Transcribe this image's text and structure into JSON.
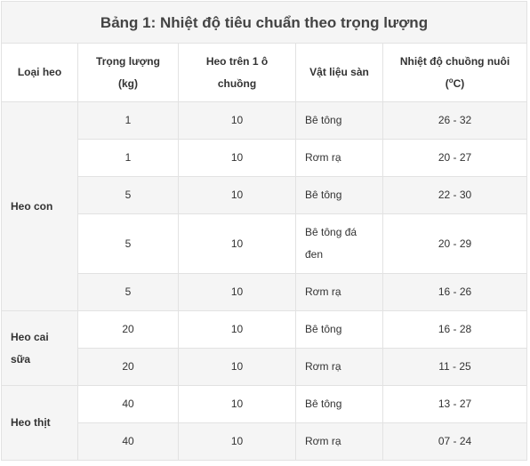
{
  "title": "Bảng 1: Nhiệt độ tiêu chuẩn theo trọng lượng",
  "headers": {
    "type": "Loại heo",
    "weight_line1": "Trọng lượng",
    "weight_line2": "(kg)",
    "pigs_line1": "Heo trên 1 ô",
    "pigs_line2": "chuồng",
    "floor": "Vật liệu sàn",
    "temp_line1": "Nhiệt độ chuồng nuôi",
    "temp_open": "(",
    "temp_sup": "o",
    "temp_close": "C)"
  },
  "groups": [
    {
      "name": "Heo con",
      "rows": [
        {
          "weight": "1",
          "pigs": "10",
          "floor": "Bê tông",
          "temp": "26 - 32"
        },
        {
          "weight": "1",
          "pigs": "10",
          "floor": "Rơm rạ",
          "temp": "20 - 27"
        },
        {
          "weight": "5",
          "pigs": "10",
          "floor": "Bê tông",
          "temp": "22 - 30"
        },
        {
          "weight": "5",
          "pigs": "10",
          "floor": "Bê tông đá đen",
          "temp": "20 - 29"
        },
        {
          "weight": "5",
          "pigs": "10",
          "floor": "Rơm rạ",
          "temp": "16 - 26"
        }
      ]
    },
    {
      "name": "Heo cai sữa",
      "rows": [
        {
          "weight": "20",
          "pigs": "10",
          "floor": "Bê tông",
          "temp": "16 - 28"
        },
        {
          "weight": "20",
          "pigs": "10",
          "floor": "Rơm rạ",
          "temp": "11 - 25"
        }
      ]
    },
    {
      "name": "Heo thịt",
      "rows": [
        {
          "weight": "40",
          "pigs": "10",
          "floor": "Bê tông",
          "temp": "13 - 27"
        },
        {
          "weight": "40",
          "pigs": "10",
          "floor": "Rơm rạ",
          "temp": "07 - 24"
        }
      ]
    }
  ]
}
